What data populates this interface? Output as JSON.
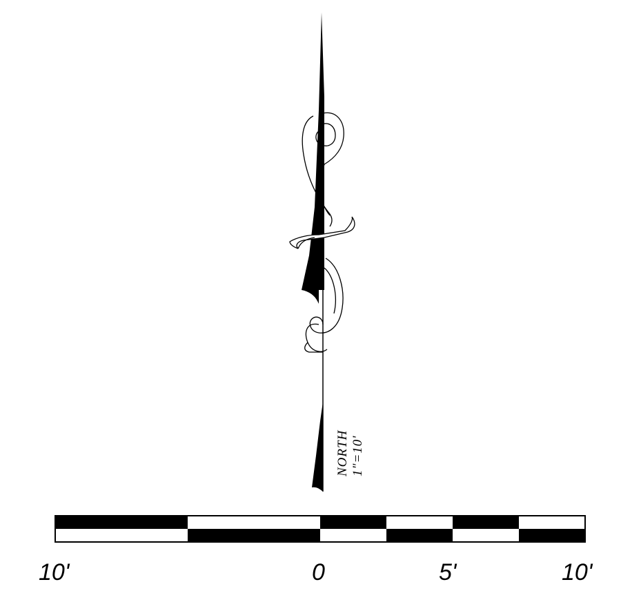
{
  "north_arrow": {
    "direction_label": "NORTH",
    "scale_ratio": "1\"=10'"
  },
  "scale_bar": {
    "labels": [
      "10'",
      "0",
      "5'",
      "10'"
    ],
    "units": "feet"
  },
  "colors": {
    "ink": "#000000",
    "paper": "#ffffff"
  }
}
